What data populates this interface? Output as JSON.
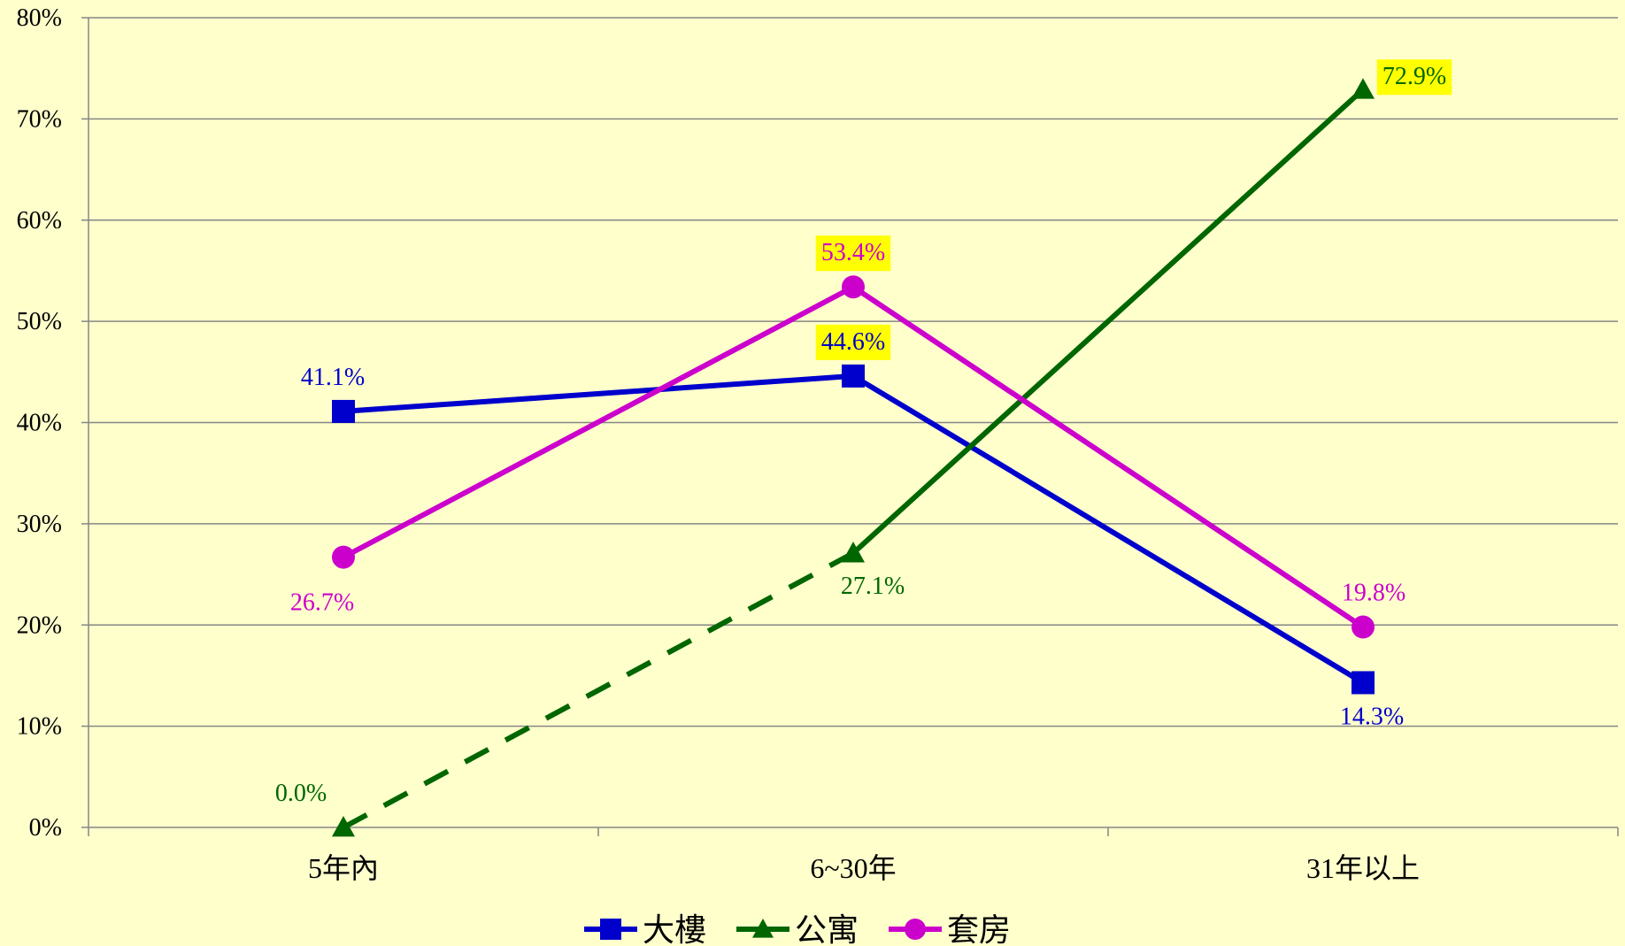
{
  "chart_data": {
    "type": "line",
    "title": "",
    "xlabel": "",
    "ylabel": "",
    "categories": [
      "5年內",
      "6~30年",
      "31年以上"
    ],
    "ylim": [
      0,
      80
    ],
    "yticks": [
      "0%",
      "10%",
      "20%",
      "30%",
      "40%",
      "50%",
      "60%",
      "70%",
      "80%"
    ],
    "grid": true,
    "legend_position": "bottom",
    "series": [
      {
        "name": "大樓",
        "values": [
          41.1,
          44.6,
          14.3
        ],
        "labels": [
          "41.1%",
          "44.6%",
          "14.3%"
        ],
        "color": "#0000cc",
        "marker": "square"
      },
      {
        "name": "公寓",
        "values": [
          0.0,
          27.1,
          72.9
        ],
        "labels": [
          "0.0%",
          "27.1%",
          "72.9%"
        ],
        "color": "#006600",
        "marker": "triangle",
        "dashed_segments": [
          0
        ]
      },
      {
        "name": "套房",
        "values": [
          26.7,
          53.4,
          19.8
        ],
        "labels": [
          "26.7%",
          "53.4%",
          "19.8%"
        ],
        "color": "#cc00cc",
        "marker": "circle"
      }
    ],
    "highlight_color": "#ffff00",
    "highlighted_labels": [
      [
        "大樓",
        1
      ],
      [
        "公寓",
        2
      ],
      [
        "套房",
        1
      ]
    ]
  }
}
